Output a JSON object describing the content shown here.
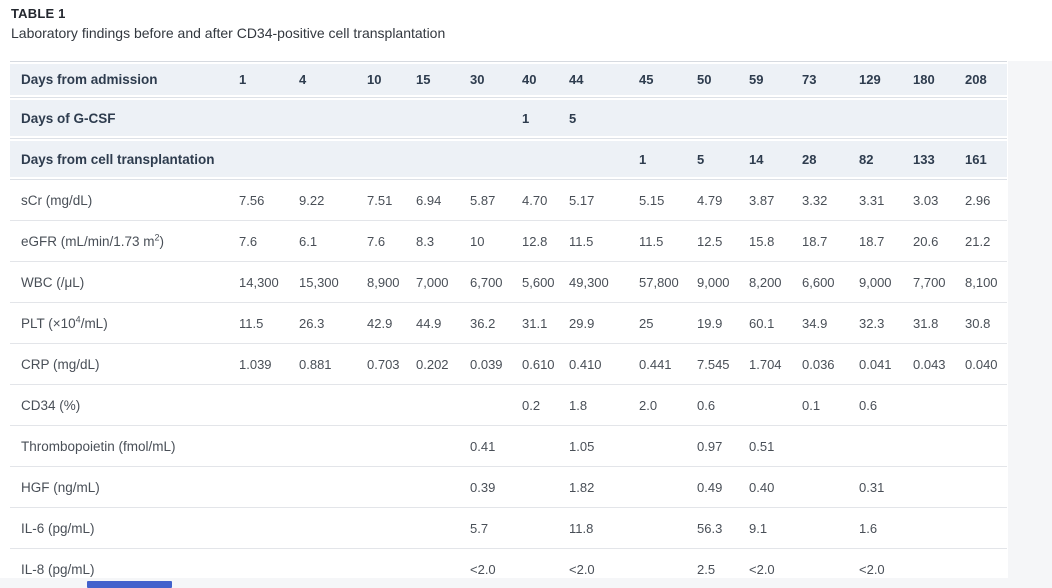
{
  "header": {
    "title": "TABLE 1",
    "subtitle": "Laboratory findings before and after CD34-positive cell transplantation"
  },
  "colors": {
    "header_row_bg": "#edf1f6",
    "page_gutter": "#f5f6f8",
    "scroll_thumb": "#4261cc",
    "header_text": "#2e3c4e",
    "body_text": "#494f57"
  },
  "scrollbar": {
    "orientation": "horizontal"
  },
  "table": {
    "header_rows": [
      {
        "label": "Days from admission",
        "sup": "",
        "label_end": "",
        "values": [
          "1",
          "4",
          "10",
          "15",
          "30",
          "40",
          "44",
          "45",
          "50",
          "59",
          "73",
          "129",
          "180",
          "208"
        ]
      },
      {
        "label": "Days of G-CSF",
        "sup": "",
        "label_end": "",
        "values": [
          "",
          "",
          "",
          "",
          "",
          "1",
          "5",
          "",
          "",
          "",
          "",
          "",
          "",
          ""
        ]
      },
      {
        "label": "Days from cell transplantation",
        "sup": "",
        "label_end": "",
        "values": [
          "",
          "",
          "",
          "",
          "",
          "",
          "",
          "1",
          "5",
          "14",
          "28",
          "82",
          "133",
          "161"
        ]
      }
    ],
    "body_rows": [
      {
        "label": "sCr (mg/dL)",
        "sup": "",
        "label_end": "",
        "values": [
          "7.56",
          "9.22",
          "7.51",
          "6.94",
          "5.87",
          "4.70",
          "5.17",
          "5.15",
          "4.79",
          "3.87",
          "3.32",
          "3.31",
          "3.03",
          "2.96"
        ]
      },
      {
        "label": "eGFR (mL/min/1.73 m",
        "sup": "2",
        "label_end": ")",
        "values": [
          "7.6",
          "6.1",
          "7.6",
          "8.3",
          "10",
          "12.8",
          "11.5",
          "11.5",
          "12.5",
          "15.8",
          "18.7",
          "18.7",
          "20.6",
          "21.2"
        ]
      },
      {
        "label": "WBC (/μL)",
        "sup": "",
        "label_end": "",
        "values": [
          "14,300",
          "15,300",
          "8,900",
          "7,000",
          "6,700",
          "5,600",
          "49,300",
          "57,800",
          "9,000",
          "8,200",
          "6,600",
          "9,000",
          "7,700",
          "8,100"
        ]
      },
      {
        "label": "PLT (×10",
        "sup": "4",
        "label_end": "/mL)",
        "values": [
          "11.5",
          "26.3",
          "42.9",
          "44.9",
          "36.2",
          "31.1",
          "29.9",
          "25",
          "19.9",
          "60.1",
          "34.9",
          "32.3",
          "31.8",
          "30.8"
        ]
      },
      {
        "label": "CRP (mg/dL)",
        "sup": "",
        "label_end": "",
        "values": [
          "1.039",
          "0.881",
          "0.703",
          "0.202",
          "0.039",
          "0.610",
          "0.410",
          "0.441",
          "7.545",
          "1.704",
          "0.036",
          "0.041",
          "0.043",
          "0.040"
        ]
      },
      {
        "label": "CD34 (%)",
        "sup": "",
        "label_end": "",
        "values": [
          "",
          "",
          "",
          "",
          "",
          "0.2",
          "1.8",
          "2.0",
          "0.6",
          "",
          "0.1",
          "0.6",
          "",
          ""
        ]
      },
      {
        "label": "Thrombopoietin (fmol/mL)",
        "sup": "",
        "label_end": "",
        "values": [
          "",
          "",
          "",
          "",
          "0.41",
          "",
          "1.05",
          "",
          "0.97",
          "0.51",
          "",
          "",
          "",
          ""
        ]
      },
      {
        "label": "HGF (ng/mL)",
        "sup": "",
        "label_end": "",
        "values": [
          "",
          "",
          "",
          "",
          "0.39",
          "",
          "1.82",
          "",
          "0.49",
          "0.40",
          "",
          "0.31",
          "",
          ""
        ]
      },
      {
        "label": "IL-6 (pg/mL)",
        "sup": "",
        "label_end": "",
        "values": [
          "",
          "",
          "",
          "",
          "5.7",
          "",
          "11.8",
          "",
          "56.3",
          "9.1",
          "",
          "1.6",
          "",
          ""
        ]
      },
      {
        "label": "IL-8 (pg/mL)",
        "sup": "",
        "label_end": "",
        "values": [
          "",
          "",
          "",
          "",
          "<2.0",
          "",
          "<2.0",
          "",
          "2.5",
          "<2.0",
          "",
          "<2.0",
          "",
          ""
        ]
      }
    ]
  }
}
